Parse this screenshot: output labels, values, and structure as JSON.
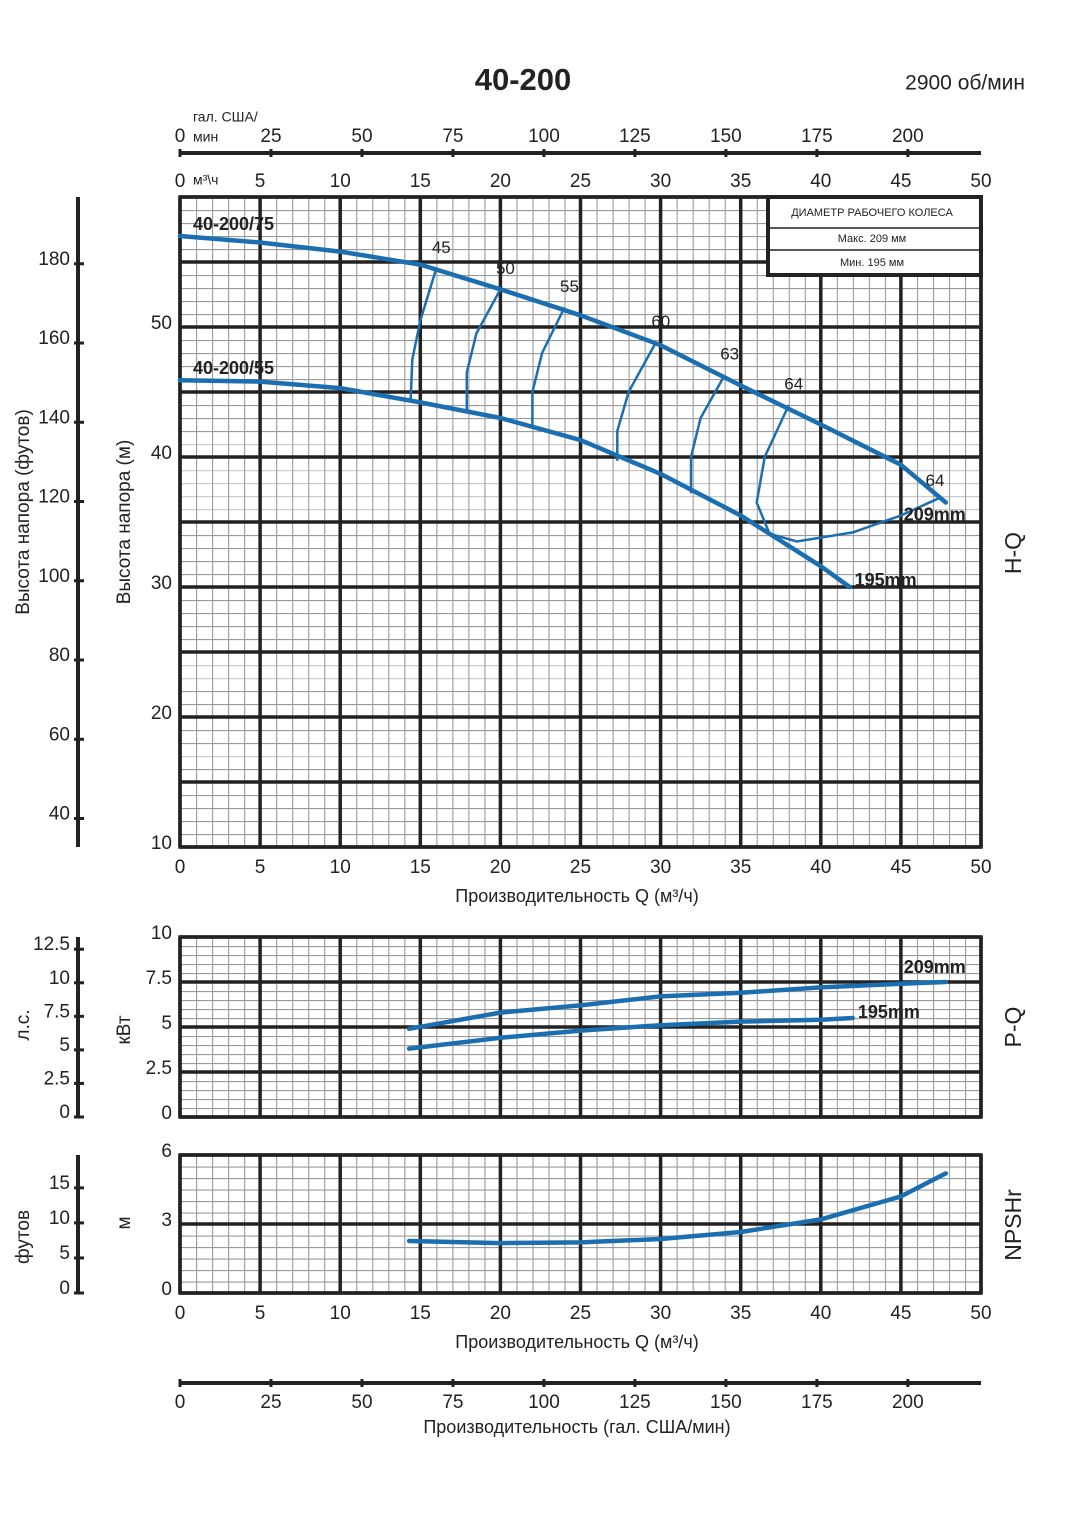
{
  "chart_data": [
    {
      "type": "line",
      "title": "40-200",
      "subtitle": "2900 об/мин",
      "side_label": "H-Q",
      "x_label": "Производительность Q (м³/ч)",
      "x_unit_label": "м³\\ч",
      "y_label": "Высота напора (м)",
      "y2_label": "Высота напора (футов)",
      "xlim": [
        0,
        50
      ],
      "xticks": [
        0,
        5,
        10,
        15,
        20,
        25,
        30,
        35,
        40,
        45,
        50
      ],
      "ylim": [
        10,
        60
      ],
      "yticks": [
        10,
        20,
        30,
        40,
        50
      ],
      "ygrid": [
        10,
        15,
        20,
        25,
        30,
        35,
        40,
        45,
        50,
        55,
        60
      ],
      "minor_grid": [
        1,
        1
      ],
      "y2lim": [
        32.81,
        196.85
      ],
      "y2ticks": [
        40,
        60,
        80,
        100,
        120,
        140,
        160,
        180
      ],
      "x2lim": [
        0,
        220.1
      ],
      "x2ticks": [
        0,
        25,
        50,
        75,
        100,
        125,
        150,
        175,
        200
      ],
      "x2_label": [
        "гал. США/",
        "мин"
      ],
      "legend": {
        "title": "ДИАМЕТР РАБОЧЕГО КОЛЕСА",
        "items": [
          "Макс. 209 мм",
          "Мин. 195 мм"
        ]
      },
      "series": [
        {
          "name": "40-200/75",
          "end_label": "209mm",
          "color": "#1b6fb0",
          "x": [
            0,
            5,
            10,
            15,
            20,
            25,
            30,
            35,
            40,
            45,
            47.8
          ],
          "values": [
            57,
            56.5,
            55.8,
            54.8,
            52.9,
            50.9,
            48.6,
            45.5,
            42.5,
            39.4,
            36.5
          ]
        },
        {
          "name": "40-200/55",
          "end_label": "195mm",
          "color": "#1b6fb0",
          "x": [
            0,
            5,
            10,
            15,
            20,
            25,
            30,
            35,
            40,
            41.8
          ],
          "values": [
            45.9,
            45.8,
            45.3,
            44.2,
            43,
            41.3,
            38.7,
            35.5,
            31.6,
            30
          ]
        }
      ],
      "efficiency_curves": [
        {
          "label": "45",
          "x": [
            16,
            15,
            14.5,
            14.4
          ],
          "values": [
            54.5,
            50.5,
            47.5,
            44.5
          ]
        },
        {
          "label": "50",
          "x": [
            20,
            18.5,
            17.9,
            17.9
          ],
          "values": [
            52.9,
            49.5,
            46.5,
            43.6
          ]
        },
        {
          "label": "55",
          "x": [
            24,
            22.6,
            22,
            22
          ],
          "values": [
            51.5,
            48,
            45,
            42.2
          ]
        },
        {
          "label": "60",
          "x": [
            29.7,
            28,
            27.3,
            27.3
          ],
          "values": [
            48.8,
            45,
            42,
            39.7
          ]
        },
        {
          "label": "63",
          "x": [
            34,
            32.5,
            31.9,
            31.9
          ],
          "values": [
            46.3,
            43,
            40,
            37.2
          ]
        },
        {
          "label": "64",
          "end_label": "64",
          "x": [
            38,
            36.5,
            36,
            36.8,
            38.5,
            42,
            45,
            47.5
          ],
          "values": [
            44,
            40,
            36.5,
            34.1,
            33.5,
            34.2,
            35.5,
            36.9
          ]
        }
      ]
    },
    {
      "type": "line",
      "side_label": "P-Q",
      "y_label": "кВт",
      "y2_label": "л.с.",
      "xlim": [
        0,
        50
      ],
      "xgrid": [
        0,
        5,
        10,
        15,
        20,
        25,
        30,
        35,
        40,
        45,
        50
      ],
      "ylim": [
        0,
        10
      ],
      "yticks": [
        0,
        2.5,
        5,
        7.5,
        10
      ],
      "minor_grid": [
        1,
        0.5
      ],
      "y2lim": [
        0,
        13.41
      ],
      "y2ticks": [
        0,
        2.5,
        5,
        7.5,
        10,
        12.5
      ],
      "series": [
        {
          "name": "209mm",
          "color": "#1b6fb0",
          "x": [
            14.3,
            20,
            25,
            30,
            35,
            40,
            45,
            47.8
          ],
          "values": [
            4.9,
            5.8,
            6.2,
            6.7,
            6.9,
            7.2,
            7.4,
            7.5
          ]
        },
        {
          "name": "195mm",
          "color": "#1b6fb0",
          "x": [
            14.3,
            20,
            25,
            30,
            35,
            40,
            42
          ],
          "values": [
            3.8,
            4.4,
            4.8,
            5.1,
            5.3,
            5.4,
            5.5
          ]
        }
      ]
    },
    {
      "type": "line",
      "side_label": "NPSHr",
      "y_label": "м",
      "y2_label": "футов",
      "x_label": "Производительность Q (м³/ч)",
      "xlim": [
        0,
        50
      ],
      "xticks": [
        0,
        5,
        10,
        15,
        20,
        25,
        30,
        35,
        40,
        45,
        50
      ],
      "ylim": [
        0,
        6
      ],
      "yticks": [
        0,
        3,
        6
      ],
      "minor_grid": [
        1,
        0.5
      ],
      "y2lim": [
        0,
        19.69
      ],
      "y2ticks": [
        0,
        5,
        10,
        15
      ],
      "x2lim": [
        0,
        220.1
      ],
      "x2ticks": [
        0,
        25,
        50,
        75,
        100,
        125,
        150,
        175,
        200
      ],
      "x2_label": "Производительность (гал. США/мин)",
      "series": [
        {
          "color": "#1b6fb0",
          "x": [
            14.3,
            20,
            25,
            30,
            35,
            40,
            45,
            47.8
          ],
          "values": [
            2.26,
            2.17,
            2.2,
            2.35,
            2.65,
            3.2,
            4.2,
            5.2
          ]
        }
      ]
    }
  ]
}
